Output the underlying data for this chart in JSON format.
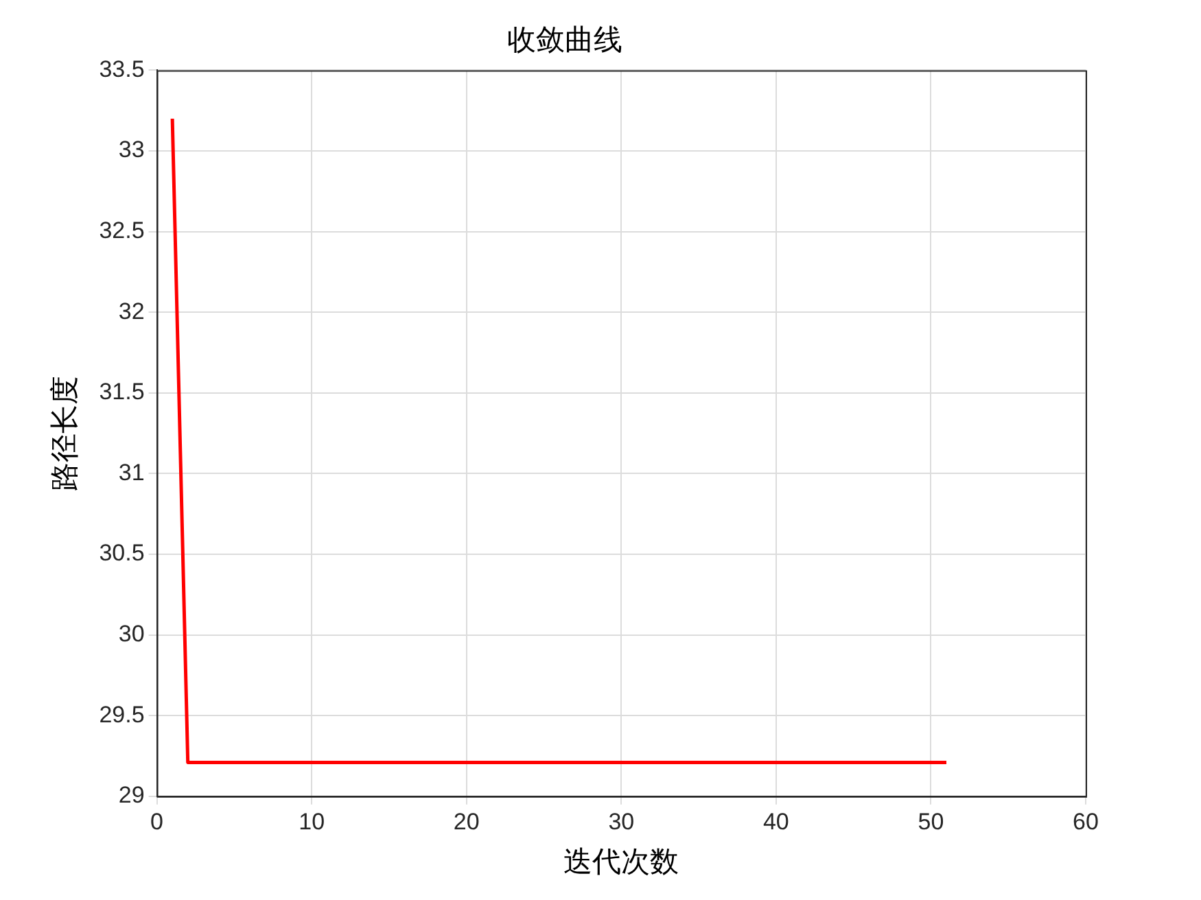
{
  "chart_data": {
    "type": "line",
    "title": "收敛曲线",
    "xlabel": "迭代次数",
    "ylabel": "路径长度",
    "x": [
      1,
      2,
      51
    ],
    "series": [
      {
        "color": "#ff0000",
        "values": [
          33.2,
          29.21,
          29.21
        ]
      }
    ],
    "xlim": [
      0,
      60
    ],
    "xticks": [
      0,
      10,
      20,
      30,
      40,
      50,
      60
    ],
    "ylim": [
      29,
      33.5
    ],
    "yticks": [
      29,
      29.5,
      30,
      30.5,
      31,
      31.5,
      32,
      32.5,
      33,
      33.5
    ],
    "grid": true,
    "legend": false,
    "marker": "none",
    "line_style": "solid"
  }
}
